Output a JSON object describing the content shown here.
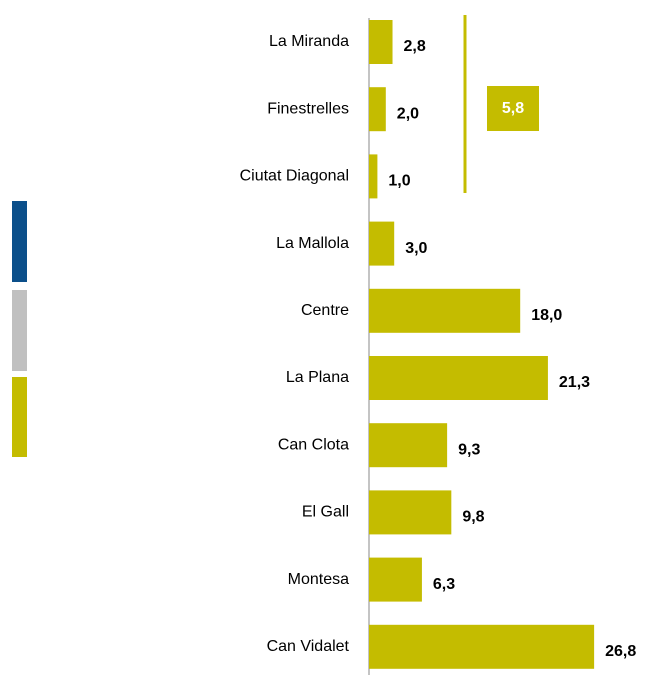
{
  "chart_data": {
    "type": "bar",
    "orientation": "horizontal",
    "categories": [
      "La Miranda",
      "Finestrelles",
      "Ciutat Diagonal",
      "La Mallola",
      "Centre",
      "La Plana",
      "Can Clota",
      "El Gall",
      "Montesa",
      "Can Vidalet"
    ],
    "values": [
      2.8,
      2.0,
      1.0,
      3.0,
      18.0,
      21.3,
      9.3,
      9.8,
      6.3,
      26.8
    ],
    "value_labels": [
      "2,8",
      "2,0",
      "1,0",
      "3,0",
      "18,0",
      "21,3",
      "9,3",
      "9,8",
      "6,3",
      "26,8"
    ],
    "color": "#c4bc00",
    "xlim": [
      0,
      30
    ],
    "annotations": [
      {
        "value": 5.8,
        "label": "5,8"
      }
    ]
  }
}
